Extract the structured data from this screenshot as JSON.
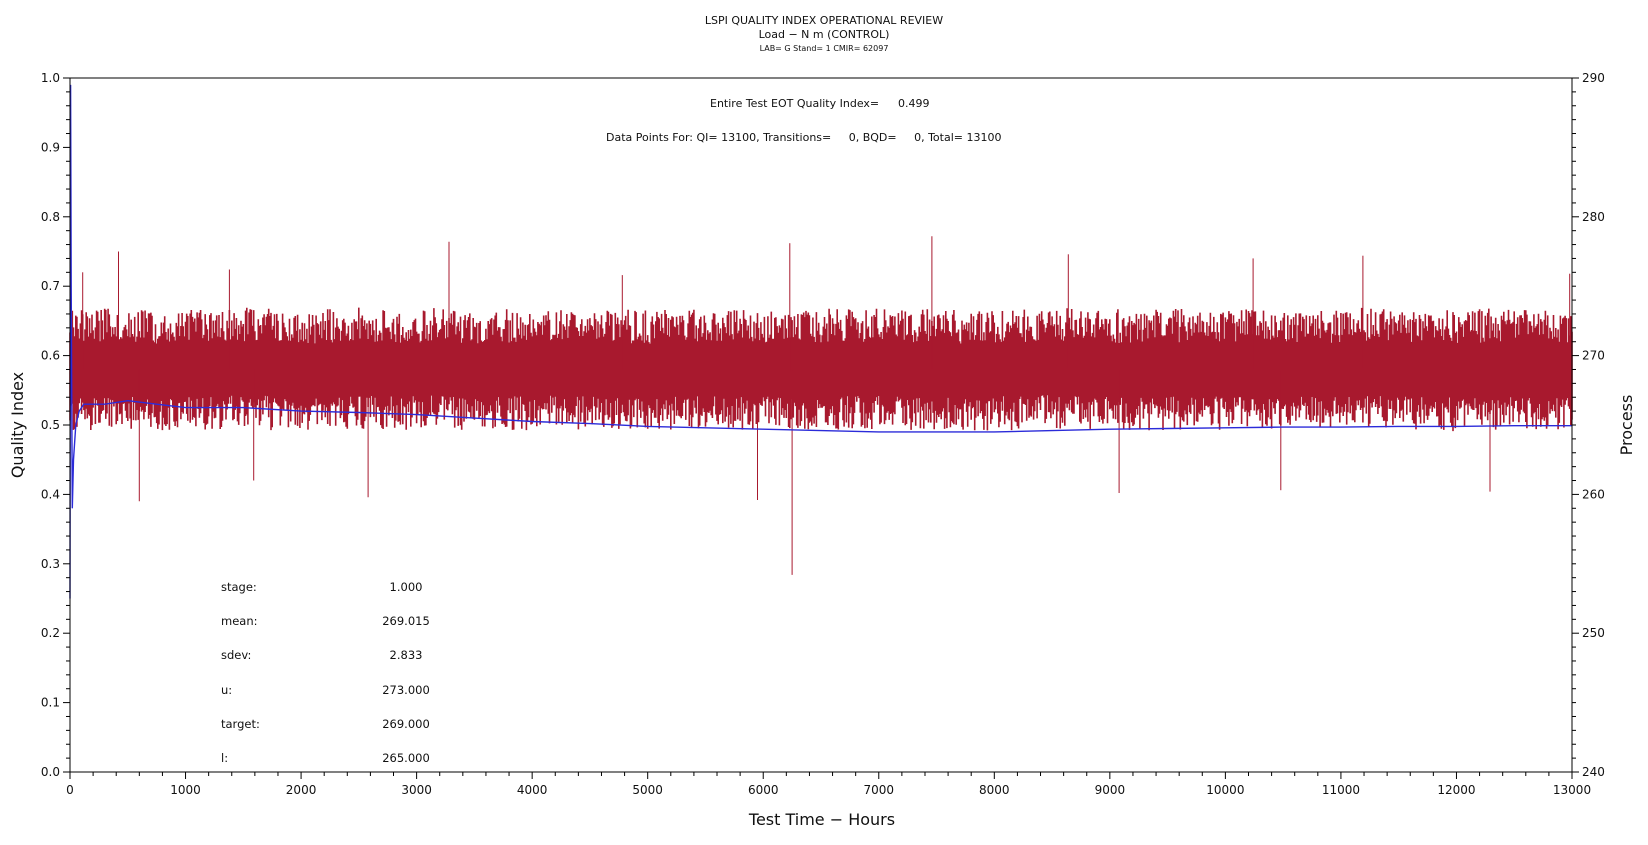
{
  "chart_data": {
    "type": "line",
    "title": "LSPI QUALITY INDEX OPERATIONAL REVIEW",
    "subtitle": "Load − N m (CONTROL)",
    "subsubtitle": "LAB= G Stand= 1 CMIR= 62097",
    "xlabel": "Test Time − Hours",
    "ylabel_left": "Quality Index",
    "ylabel_right": "Process",
    "xlim": [
      0,
      13000
    ],
    "ylim_left": [
      0.0,
      1.0
    ],
    "ylim_right": [
      240,
      290
    ],
    "x_ticks": [
      "0",
      "1000",
      "2000",
      "3000",
      "4000",
      "5000",
      "6000",
      "7000",
      "8000",
      "9000",
      "10000",
      "11000",
      "12000",
      "13000"
    ],
    "y_left_ticks": [
      "0.0",
      "0.1",
      "0.2",
      "0.3",
      "0.4",
      "0.5",
      "0.6",
      "0.7",
      "0.8",
      "0.9",
      "1.0"
    ],
    "y_right_ticks": [
      "240",
      "250",
      "260",
      "270",
      "280",
      "290"
    ],
    "grid": false,
    "annotations": {
      "eot_label": "Entire Test EOT Quality Index=",
      "eot_value": "0.499",
      "data_points": "Data Points For: QI= 13100, Transitions=     0, BQD=     0, Total= 13100"
    },
    "stats": [
      {
        "label": "stage:",
        "value": "1.000"
      },
      {
        "label": "mean:",
        "value": "269.015"
      },
      {
        "label": "sdev:",
        "value": "2.833"
      },
      {
        "label": "u:",
        "value": "273.000"
      },
      {
        "label": "target:",
        "value": "269.000"
      },
      {
        "label": "l:",
        "value": "265.000"
      }
    ],
    "series": [
      {
        "name": "",
        "axis": "right",
        "color": "#A8192E",
        "kind": "process",
        "x": [
          0,
          250,
          500,
          750,
          1000,
          1250,
          1500,
          1750,
          2000,
          2250,
          2500,
          2750,
          3000,
          3250,
          3500,
          3750,
          4000,
          4250,
          4500,
          4750,
          5000,
          5250,
          5500,
          5750,
          6000,
          6250,
          6500,
          6750,
          7000,
          7250,
          7500,
          7750,
          8000,
          8250,
          8500,
          8750,
          9000,
          9250,
          9500,
          9750,
          10000,
          10250,
          10500,
          10750,
          11000,
          11250,
          11500,
          11750,
          12000,
          12250,
          12500,
          12750,
          13000
        ],
        "y_center": [
          269.0,
          269.0,
          269.1,
          268.9,
          269.0,
          269.0,
          269.1,
          269.0,
          268.9,
          269.0,
          269.1,
          269.0,
          269.0,
          269.1,
          268.9,
          269.0,
          269.0,
          269.1,
          269.0,
          269.0,
          268.9,
          269.0,
          269.1,
          269.0,
          269.0,
          268.9,
          269.0,
          269.0,
          269.1,
          269.0,
          269.0,
          268.9,
          269.0,
          269.0,
          269.1,
          269.0,
          269.0,
          268.9,
          269.0,
          269.1,
          269.0,
          269.0,
          268.9,
          269.0,
          269.0,
          269.1,
          269.0,
          269.0,
          268.9,
          269.0,
          269.1,
          269.0,
          269.0
        ],
        "band": [
          265.5,
          272.5
        ],
        "spikes": [
          {
            "x": 110,
            "y": 276.0
          },
          {
            "x": 420,
            "y": 277.5
          },
          {
            "x": 600,
            "y": 259.5
          },
          {
            "x": 1380,
            "y": 276.2
          },
          {
            "x": 1590,
            "y": 261.0
          },
          {
            "x": 2580,
            "y": 259.8
          },
          {
            "x": 3280,
            "y": 278.2
          },
          {
            "x": 4780,
            "y": 275.8
          },
          {
            "x": 5950,
            "y": 259.6
          },
          {
            "x": 6250,
            "y": 254.2
          },
          {
            "x": 6230,
            "y": 278.1
          },
          {
            "x": 7460,
            "y": 278.6
          },
          {
            "x": 8640,
            "y": 277.3
          },
          {
            "x": 9080,
            "y": 260.1
          },
          {
            "x": 10240,
            "y": 277.0
          },
          {
            "x": 10480,
            "y": 260.3
          },
          {
            "x": 11190,
            "y": 277.2
          },
          {
            "x": 12290,
            "y": 260.2
          },
          {
            "x": 12980,
            "y": 275.9
          }
        ]
      },
      {
        "name": "",
        "axis": "left",
        "color": "#2B2BD9",
        "kind": "quality-index",
        "x": [
          0,
          5,
          10,
          20,
          30,
          50,
          80,
          120,
          200,
          300,
          500,
          750,
          1000,
          1500,
          2000,
          2500,
          3000,
          3500,
          4000,
          4500,
          5000,
          5500,
          6000,
          6500,
          7000,
          7500,
          8000,
          8500,
          9000,
          9500,
          10000,
          10500,
          11000,
          11500,
          12000,
          12500,
          13000
        ],
        "y": [
          0.25,
          0.99,
          0.7,
          0.38,
          0.45,
          0.5,
          0.52,
          0.53,
          0.53,
          0.53,
          0.535,
          0.53,
          0.525,
          0.525,
          0.52,
          0.518,
          0.515,
          0.51,
          0.505,
          0.502,
          0.498,
          0.496,
          0.494,
          0.492,
          0.49,
          0.49,
          0.49,
          0.492,
          0.494,
          0.495,
          0.496,
          0.497,
          0.497,
          0.498,
          0.498,
          0.499,
          0.499
        ]
      }
    ]
  }
}
